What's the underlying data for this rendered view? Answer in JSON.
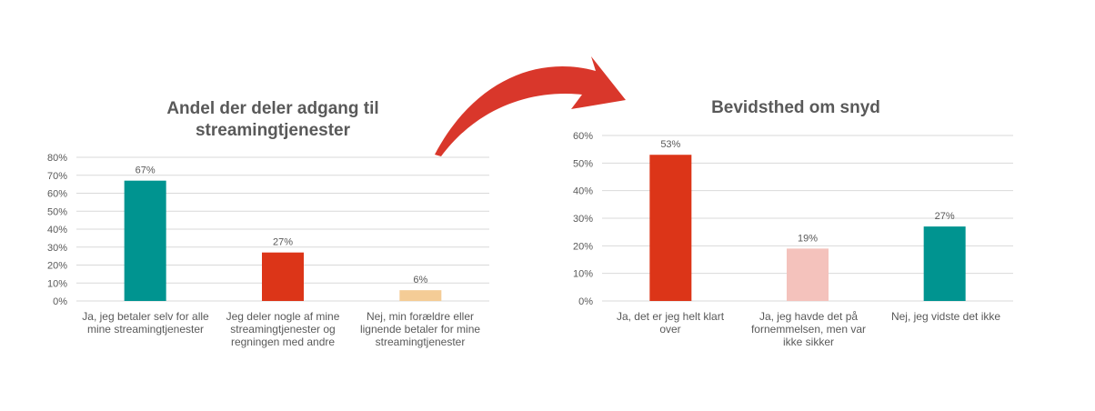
{
  "chart_data": [
    {
      "type": "bar",
      "title": "Andel der deler adgang til streamingtjenester",
      "categories": [
        "Ja, jeg betaler selv for alle mine streamingtjenester",
        "Jeg deler nogle af mine streamingtjenester og regningen med andre",
        "Nej, min forældre eller lignende betaler for mine streamingtjenester"
      ],
      "values": [
        67,
        27,
        6
      ],
      "data_labels": [
        "67%",
        "27%",
        "6%"
      ],
      "colors": [
        "#009490",
        "#dc3518",
        "#f4cc96"
      ],
      "ylim": [
        0,
        80
      ],
      "yticks": [
        "0%",
        "10%",
        "20%",
        "30%",
        "40%",
        "50%",
        "60%",
        "70%",
        "80%"
      ],
      "grid": true
    },
    {
      "type": "bar",
      "title": "Bevidsthed om snyd",
      "categories": [
        "Ja, det er jeg helt klart over",
        "Ja, jeg havde det på fornemmelsen, men var ikke sikker",
        "Nej, jeg vidste det ikke"
      ],
      "values": [
        53,
        19,
        27
      ],
      "data_labels": [
        "53%",
        "19%",
        "27%"
      ],
      "colors": [
        "#dc3518",
        "#f4c2bc",
        "#009490"
      ],
      "ylim": [
        0,
        60
      ],
      "yticks": [
        "0%",
        "10%",
        "20%",
        "30%",
        "40%",
        "50%",
        "60%"
      ],
      "grid": true
    }
  ],
  "arrow_color": "#d9372b"
}
